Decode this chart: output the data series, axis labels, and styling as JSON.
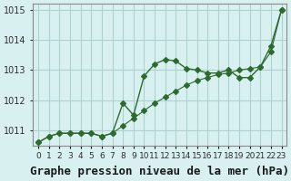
{
  "line1_x": [
    0,
    1,
    2,
    3,
    4,
    5,
    6,
    7,
    8,
    9,
    10,
    11,
    12,
    13,
    14,
    15,
    16,
    17,
    18,
    19,
    20,
    21,
    22,
    23
  ],
  "line1_y": [
    1010.6,
    1010.8,
    1010.9,
    1010.9,
    1010.9,
    1010.9,
    1010.8,
    1010.9,
    1011.9,
    1011.5,
    1012.8,
    1013.2,
    1013.35,
    1013.3,
    1013.05,
    1013.0,
    1012.9,
    1012.9,
    1013.0,
    1012.75,
    1012.75,
    1013.1,
    1013.8,
    1015.0
  ],
  "line2_x": [
    0,
    1,
    2,
    3,
    4,
    5,
    6,
    7,
    8,
    9,
    10,
    11,
    12,
    13,
    14,
    15,
    16,
    17,
    18,
    19,
    20,
    21,
    22,
    23
  ],
  "line2_y": [
    1010.6,
    1010.8,
    1010.9,
    1010.9,
    1010.9,
    1010.9,
    1010.8,
    1010.9,
    1011.15,
    1011.4,
    1011.65,
    1011.9,
    1012.1,
    1012.3,
    1012.5,
    1012.65,
    1012.75,
    1012.85,
    1012.9,
    1013.0,
    1013.05,
    1013.1,
    1013.6,
    1015.0
  ],
  "line_color": "#2d6a2d",
  "marker": "D",
  "marker_size": 3,
  "bg_color": "#d8f0f0",
  "grid_color": "#b0d0d0",
  "title": "Graphe pression niveau de la mer (hPa)",
  "ylim": [
    1010.5,
    1015.2
  ],
  "xlim": [
    -0.5,
    23.5
  ],
  "yticks": [
    1011,
    1012,
    1013,
    1014,
    1015
  ],
  "xtick_labels": [
    "0",
    "1",
    "2",
    "3",
    "4",
    "5",
    "6",
    "7",
    "8",
    "9",
    "10",
    "11",
    "12",
    "13",
    "14",
    "15",
    "16",
    "17",
    "18",
    "19",
    "20",
    "21",
    "22",
    "23"
  ],
  "title_fontsize": 9,
  "tick_fontsize": 7
}
